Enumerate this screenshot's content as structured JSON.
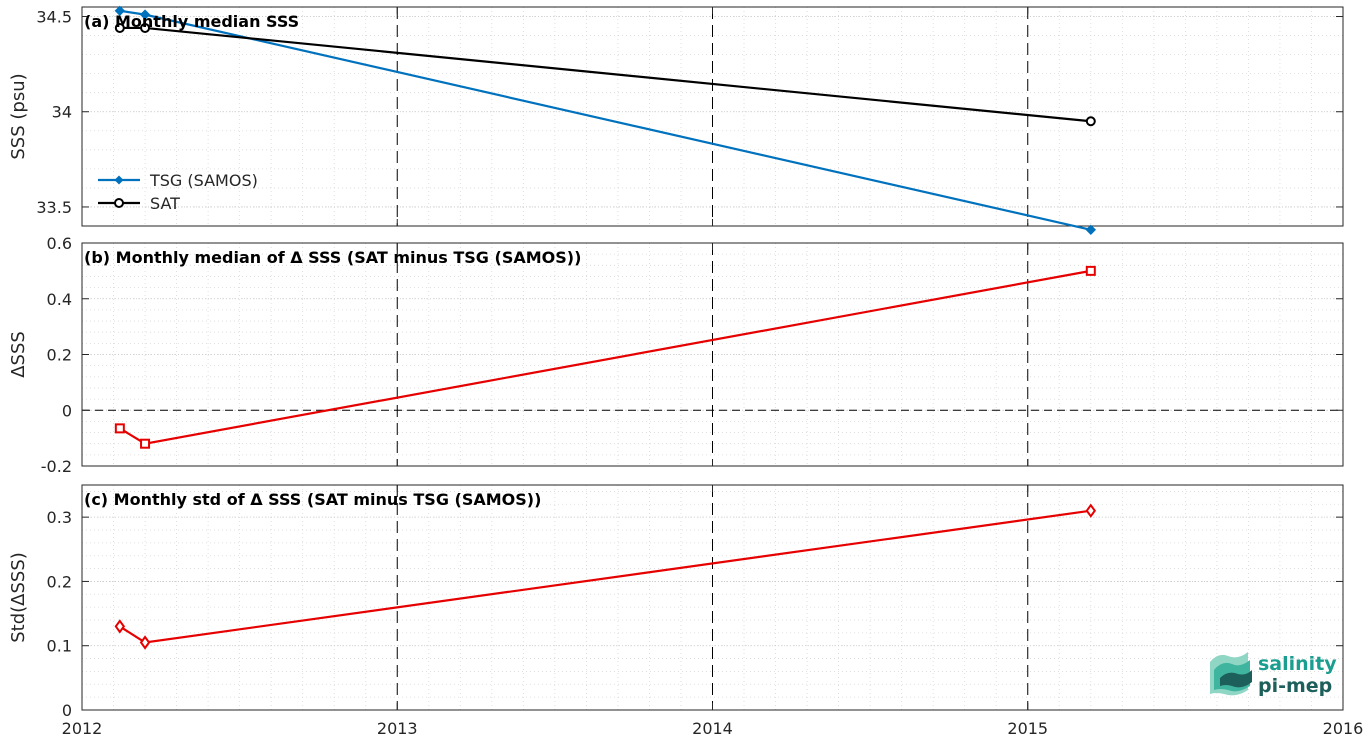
{
  "colors": {
    "tsg": "#0072BD",
    "sat": "#000000",
    "delta": "#E60000",
    "logo_teal": "#1A9E8F",
    "logo_dark": "#1D5F5A"
  },
  "logo": {
    "line1": "salinity",
    "line2": "pi-mep",
    "icon": "salinity-wave-icon"
  },
  "x_ticks": [
    "2012",
    "2013",
    "2014",
    "2015",
    "2016"
  ],
  "chart_data": [
    {
      "type": "line",
      "title": "(a) Monthly median SSS",
      "ylabel": "SSS (psu)",
      "xlim": [
        2012,
        2016
      ],
      "ylim": [
        33.4,
        34.55
      ],
      "y_ticks": [
        "33.5",
        "34",
        "34.5"
      ],
      "grid": true,
      "legend": "left",
      "series": [
        {
          "name": "TSG (SAMOS)",
          "marker": "dot",
          "x": [
            2012.12,
            2012.2,
            2015.2
          ],
          "y": [
            34.53,
            34.51,
            33.38
          ]
        },
        {
          "name": "SAT",
          "marker": "circle",
          "x": [
            2012.12,
            2012.2,
            2015.2
          ],
          "y": [
            34.44,
            34.44,
            33.95
          ]
        }
      ]
    },
    {
      "type": "line",
      "title": "(b) Monthly median of Δ SSS (SAT minus TSG (SAMOS))",
      "ylabel": "ΔSSS",
      "xlim": [
        2012,
        2016
      ],
      "ylim": [
        -0.2,
        0.6
      ],
      "y_ticks": [
        "-0.2",
        "0",
        "0.2",
        "0.4",
        "0.6"
      ],
      "zero_line": true,
      "grid": true,
      "series": [
        {
          "marker": "square",
          "x": [
            2012.12,
            2012.2,
            2015.2
          ],
          "y": [
            -0.065,
            -0.12,
            0.5
          ]
        }
      ]
    },
    {
      "type": "line",
      "title": "(c) Monthly std of Δ SSS (SAT minus TSG (SAMOS))",
      "ylabel": "Std(ΔSSS)",
      "xlim": [
        2012,
        2016
      ],
      "ylim": [
        0,
        0.35
      ],
      "y_ticks": [
        "0",
        "0.1",
        "0.2",
        "0.3"
      ],
      "grid": true,
      "series": [
        {
          "marker": "diamond",
          "x": [
            2012.12,
            2012.2,
            2015.2
          ],
          "y": [
            0.13,
            0.105,
            0.31
          ]
        }
      ]
    }
  ]
}
